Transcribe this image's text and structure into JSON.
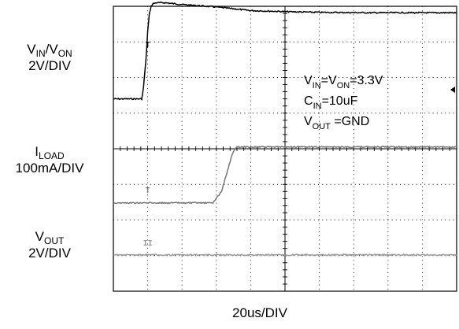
{
  "chart_data": {
    "type": "line",
    "title": "",
    "xlabel": "20us/DIV",
    "time_unit": "us",
    "x_divisions": 10,
    "x_range_us": [
      0,
      200
    ],
    "y_divisions": 8,
    "channel_labels": {
      "vin_von": {
        "main": "V",
        "sub1": "IN",
        "mid": "/V",
        "sub2": "ON",
        "scale": "2V/DIV"
      },
      "iload": {
        "main": "I",
        "sub": "LOAD",
        "scale": "100mA/DIV"
      },
      "vout": {
        "main": "V",
        "sub": "OUT",
        "scale": "2V/DIV"
      }
    },
    "annotation": {
      "line1": {
        "a": "V",
        "a_sub": "IN",
        "b": "=V",
        "b_sub": "ON",
        "c": "=3.3V"
      },
      "line2": {
        "a": "C",
        "a_sub": "IN",
        "b": "=10uF"
      },
      "line3": {
        "a": "V",
        "a_sub": "OUT",
        "b": " =GND"
      }
    },
    "grid": true,
    "series": [
      {
        "key": "vin_von",
        "color": "#000000",
        "marker": "1",
        "x_us": [
          0,
          16.5,
          17.5,
          19,
          20,
          21,
          22,
          23,
          25,
          30,
          40,
          60,
          80,
          100,
          120,
          150,
          200
        ],
        "y_div": [
          1.4,
          1.4,
          1.7,
          2.5,
          3.3,
          3.8,
          4.0,
          4.07,
          4.1,
          4.1,
          4.05,
          3.98,
          3.88,
          3.85,
          3.83,
          3.82,
          3.82
        ]
      },
      {
        "key": "iload",
        "color": "#777777",
        "marker": "2",
        "x_us": [
          0,
          58,
          63,
          66,
          69,
          71,
          73,
          75,
          90,
          120,
          150,
          200
        ],
        "y_div": [
          -1.52,
          -1.52,
          -1.2,
          -0.7,
          -0.2,
          0.02,
          0.05,
          0.05,
          0.05,
          0.05,
          0.05,
          0.05
        ]
      },
      {
        "key": "vout",
        "color": "#9a9a9a",
        "marker": "3",
        "x_us": [
          0,
          200
        ],
        "y_div": [
          -2.98,
          -2.98
        ]
      }
    ]
  }
}
